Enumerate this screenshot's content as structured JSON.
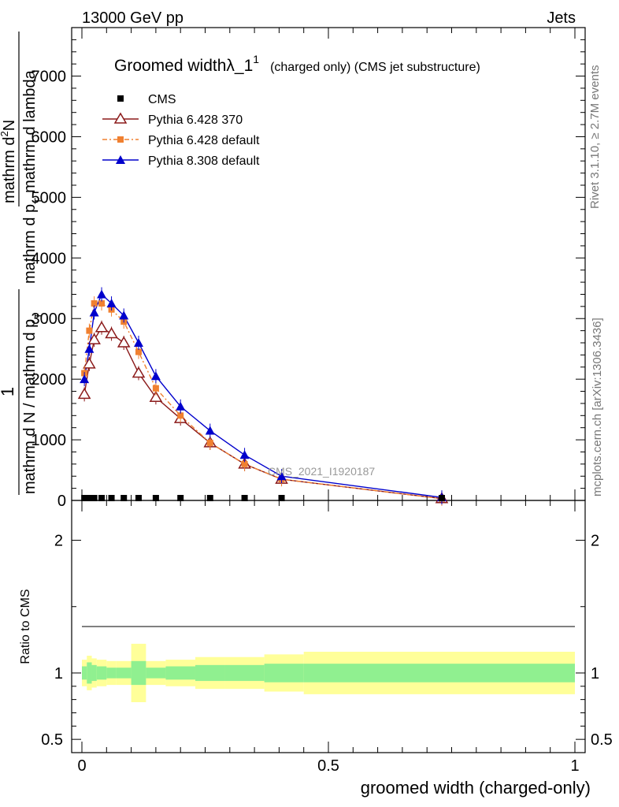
{
  "header": {
    "left": "13000 GeV pp",
    "right": "Jets"
  },
  "side_text": {
    "rivet": "Rivet 3.1.10, ≥ 2.7M events",
    "mcplots": "mcplots.cern.ch [arXiv:1306.3436]"
  },
  "watermark": "CMS_2021_I1920187",
  "title": {
    "main": "Groomed widthλ_1",
    "sup": "1",
    "rest": "(charged only) (CMS jet substructure)"
  },
  "ylabel_top": {
    "one": "1",
    "den_main": "mathrm d N / mathrm d p",
    "den_sub": "T",
    "num_main": "mathrm d",
    "num_sup": "2",
    "num_rest": "N",
    "den2_main": "mathrm d p",
    "den2_sub": "T",
    "den2_rest": "mathrm d lambda"
  },
  "ylabel_ratio": "Ratio to CMS",
  "xlabel": "groomed width (charged-only)",
  "colors": {
    "cms": "#000000",
    "py6_370": "#8b1a1a",
    "py6_default": "#f08030",
    "py8": "#0000cc",
    "band_inner": "#90f090",
    "band_outer": "#ffff99"
  },
  "chart_data": {
    "type": "line",
    "xlim": [
      -0.02,
      1.0
    ],
    "ylim": [
      0,
      7800
    ],
    "ratio_ylim": [
      0.4,
      2.3
    ],
    "xticks": [
      0,
      0.5,
      1
    ],
    "xtick_labels": [
      "0",
      "0.5",
      "1"
    ],
    "yticks": [
      0,
      1000,
      2000,
      3000,
      4000,
      5000,
      6000,
      7000
    ],
    "ytick_labels": [
      "0",
      "1000",
      "2000",
      "3000",
      "4000",
      "5000",
      "6000",
      "7000"
    ],
    "ratio_yticks": [
      0.5,
      1,
      2
    ],
    "ratio_ytick_labels": [
      "0.5",
      "1",
      "2"
    ],
    "legend_position": "top-left",
    "series": [
      {
        "name": "CMS",
        "marker": "square",
        "x": [
          0.005,
          0.015,
          0.025,
          0.04,
          0.06,
          0.085,
          0.115,
          0.15,
          0.2,
          0.26,
          0.33,
          0.405,
          0.73
        ],
        "y": [
          3,
          3,
          3,
          3,
          3,
          3,
          3,
          3,
          3,
          3,
          3,
          3,
          3
        ]
      },
      {
        "name": "Pythia 6.428 370",
        "marker": "open-triangle",
        "x": [
          0.005,
          0.015,
          0.025,
          0.04,
          0.06,
          0.085,
          0.115,
          0.15,
          0.2,
          0.26,
          0.33,
          0.405,
          0.73
        ],
        "y": [
          1750,
          2250,
          2650,
          2850,
          2750,
          2600,
          2100,
          1700,
          1350,
          950,
          600,
          350,
          30
        ]
      },
      {
        "name": "Pythia 6.428 default",
        "marker": "square-small",
        "x": [
          0.005,
          0.015,
          0.025,
          0.04,
          0.06,
          0.085,
          0.115,
          0.15,
          0.2,
          0.26,
          0.33,
          0.405,
          0.73
        ],
        "y": [
          2100,
          2800,
          3250,
          3250,
          3150,
          2950,
          2450,
          1850,
          1400,
          950,
          600,
          350,
          30
        ]
      },
      {
        "name": "Pythia 8.308 default",
        "marker": "filled-triangle",
        "x": [
          0.005,
          0.015,
          0.025,
          0.04,
          0.06,
          0.085,
          0.115,
          0.15,
          0.2,
          0.26,
          0.33,
          0.405,
          0.73
        ],
        "y": [
          2000,
          2500,
          3100,
          3400,
          3250,
          3050,
          2600,
          2050,
          1550,
          1150,
          750,
          400,
          50
        ]
      }
    ],
    "ratio_band": {
      "edges": [
        0,
        0.01,
        0.02,
        0.03,
        0.05,
        0.07,
        0.1,
        0.13,
        0.17,
        0.23,
        0.29,
        0.37,
        0.45,
        1.0
      ],
      "inner": [
        0.05,
        0.08,
        0.06,
        0.05,
        0.04,
        0.04,
        0.09,
        0.04,
        0.05,
        0.06,
        0.06,
        0.07,
        0.07
      ],
      "outer": [
        0.1,
        0.13,
        0.11,
        0.1,
        0.09,
        0.09,
        0.22,
        0.09,
        0.1,
        0.12,
        0.12,
        0.14,
        0.16
      ]
    }
  }
}
